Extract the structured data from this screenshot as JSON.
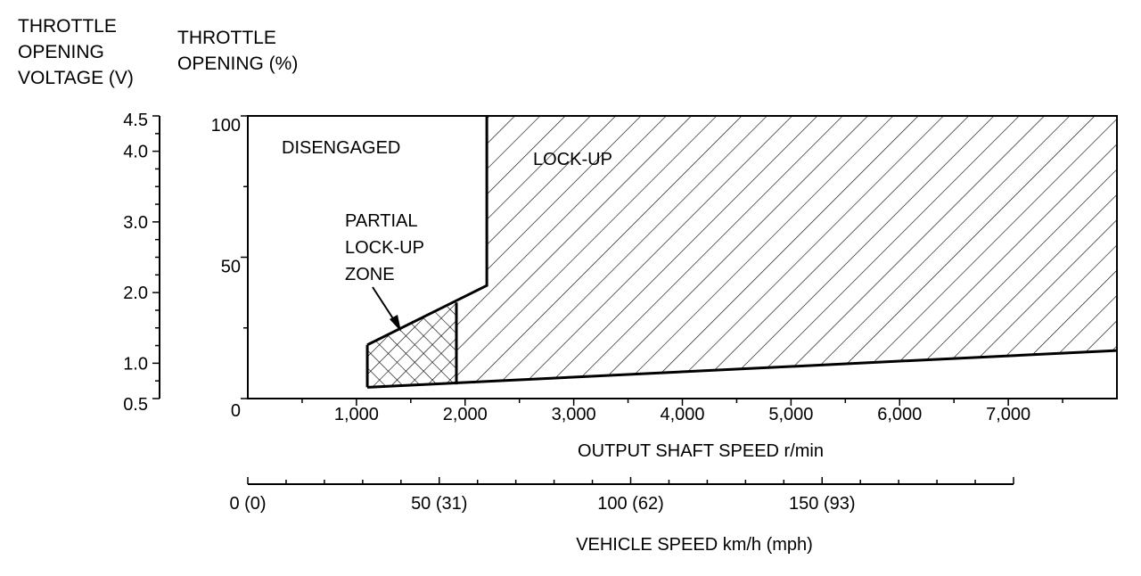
{
  "labels": {
    "voltage_axis": [
      "THROTTLE",
      "OPENING",
      "VOLTAGE (V)"
    ],
    "opening_axis": [
      "THROTTLE",
      "OPENING (%)"
    ],
    "x_axis": "OUTPUT SHAFT SPEED r/min",
    "vehicle_axis": "VEHICLE SPEED km/h (mph)"
  },
  "chart_data": {
    "type": "area",
    "xlabel": "OUTPUT SHAFT SPEED r/min",
    "ylabel": "THROTTLE OPENING (%)",
    "xlim": [
      0,
      8000
    ],
    "ylim": [
      0,
      100
    ],
    "x_ticks": [
      "1,000",
      "2,000",
      "3,000",
      "4,000",
      "5,000",
      "6,000",
      "7,000"
    ],
    "x_tick_values": [
      1000,
      2000,
      3000,
      4000,
      5000,
      6000,
      7000
    ],
    "y_ticks": [
      "0",
      "50",
      "100"
    ],
    "y_tick_values": [
      0,
      50,
      100
    ],
    "voltage_axis": {
      "label": "THROTTLE OPENING VOLTAGE (V)",
      "ticks": [
        "0.5",
        "1.0",
        "2.0",
        "3.0",
        "4.0",
        "4.5"
      ],
      "tick_values": [
        0.5,
        1.0,
        2.0,
        3.0,
        4.0,
        4.5
      ],
      "range": [
        0.5,
        4.5
      ]
    },
    "vehicle_speed_axis": {
      "label": "VEHICLE SPEED km/h (mph)",
      "ticks": [
        "0 (0)",
        "50 (31)",
        "100 (62)",
        "150 (93)"
      ],
      "tick_values": [
        0,
        50,
        100,
        150
      ]
    },
    "regions": [
      {
        "name": "DISENGAGED",
        "label_lines": [
          "DISENGAGED"
        ],
        "pattern": "none"
      },
      {
        "name": "LOCK-UP",
        "label_lines": [
          "LOCK-UP"
        ],
        "pattern": "diagonal",
        "points": [
          [
            2200,
            100
          ],
          [
            8000,
            100
          ],
          [
            8000,
            17
          ],
          [
            1920,
            5
          ],
          [
            1920,
            34
          ],
          [
            2200,
            40
          ]
        ]
      },
      {
        "name": "PARTIAL LOCK-UP ZONE",
        "label_lines": [
          "PARTIAL",
          "LOCK-UP",
          "ZONE"
        ],
        "pattern": "crosshatch",
        "points": [
          [
            1100,
            19
          ],
          [
            1920,
            34
          ],
          [
            1920,
            5
          ],
          [
            1100,
            4
          ]
        ]
      }
    ],
    "boundary": [
      [
        1100,
        19
      ],
      [
        2200,
        40
      ],
      [
        2200,
        100
      ]
    ],
    "lower_boundary": [
      [
        1100,
        4
      ],
      [
        8000,
        17
      ]
    ]
  }
}
